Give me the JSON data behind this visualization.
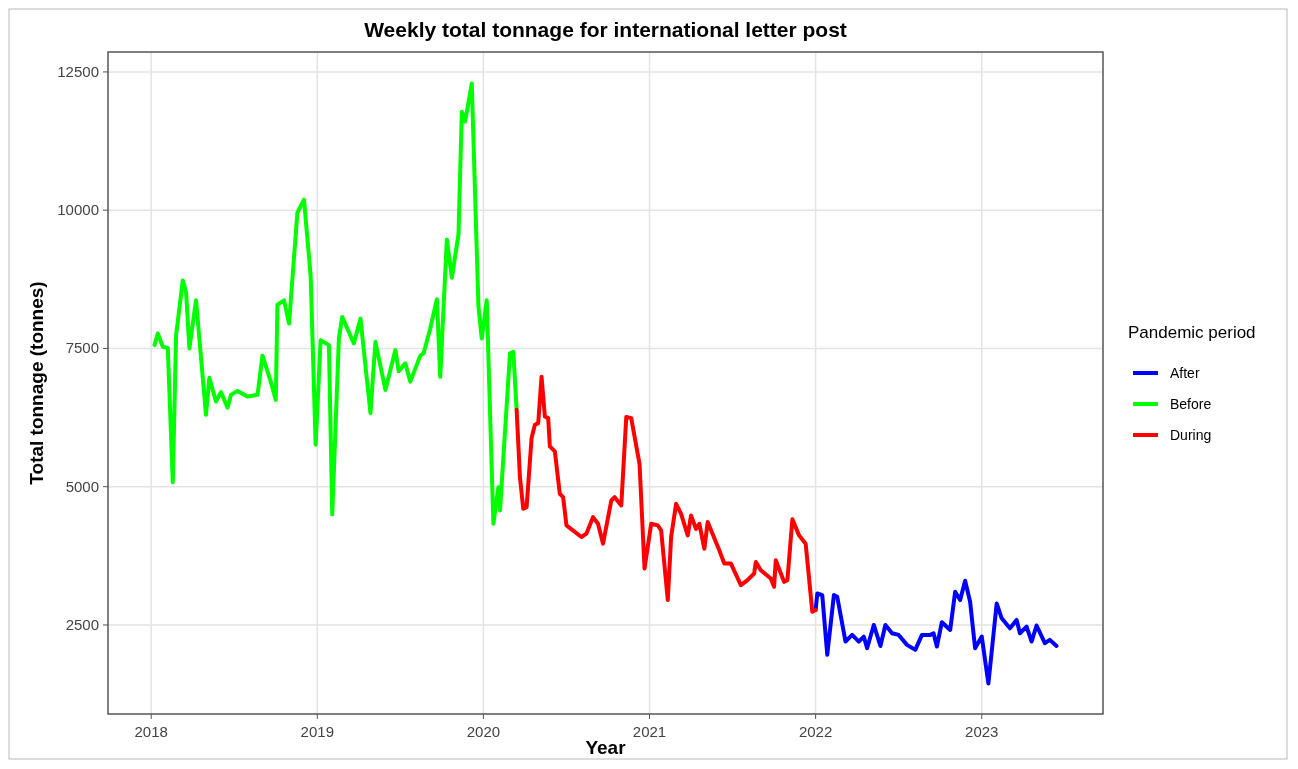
{
  "chart_data": {
    "type": "line",
    "title": "Weekly total tonnage for international letter post",
    "xlabel": "Year",
    "ylabel": "Total tonnage (tonnes)",
    "legend_title": "Pandemic period",
    "xlim": [
      2017.74,
      2023.73
    ],
    "xticks": [
      2018,
      2019,
      2020,
      2021,
      2022,
      2023
    ],
    "ylim": [
      890,
      12860
    ],
    "yticks": [
      2500,
      5000,
      7500,
      10000,
      12500
    ],
    "grid": true,
    "legend": "right",
    "series": [
      {
        "name": "After",
        "color": "#0000ff",
        "x": [
          2022.0,
          2022.01,
          2022.04,
          2022.07,
          2022.11,
          2022.13,
          2022.18,
          2022.22,
          2022.26,
          2022.29,
          2022.31,
          2022.35,
          2022.39,
          2022.42,
          2022.46,
          2022.5,
          2022.55,
          2022.6,
          2022.64,
          2022.69,
          2022.71,
          2022.73,
          2022.76,
          2022.81,
          2022.84,
          2022.87,
          2022.9,
          2022.93,
          2022.96,
          2023.0,
          2023.04,
          2023.09,
          2023.12,
          2023.17,
          2023.21,
          2023.23,
          2023.27,
          2023.3,
          2023.33,
          2023.38,
          2023.41,
          2023.45
        ],
        "values": [
          2770,
          3070,
          3040,
          1960,
          3040,
          3010,
          2200,
          2320,
          2200,
          2290,
          2080,
          2500,
          2120,
          2500,
          2350,
          2320,
          2140,
          2050,
          2320,
          2320,
          2350,
          2110,
          2550,
          2410,
          3100,
          2950,
          3300,
          2920,
          2080,
          2290,
          1440,
          2890,
          2620,
          2440,
          2590,
          2350,
          2470,
          2200,
          2490,
          2170,
          2230,
          2120
        ]
      },
      {
        "name": "Before",
        "color": "#00ff00",
        "x": [
          2018.02,
          2018.04,
          2018.07,
          2018.1,
          2018.13,
          2018.15,
          2018.19,
          2018.21,
          2018.23,
          2018.27,
          2018.33,
          2018.35,
          2018.39,
          2018.42,
          2018.46,
          2018.48,
          2018.52,
          2018.58,
          2018.64,
          2018.67,
          2018.72,
          2018.75,
          2018.76,
          2018.8,
          2018.83,
          2018.88,
          2018.92,
          2018.96,
          2018.99,
          2019.02,
          2019.07,
          2019.09,
          2019.13,
          2019.15,
          2019.22,
          2019.26,
          2019.32,
          2019.35,
          2019.41,
          2019.47,
          2019.49,
          2019.53,
          2019.56,
          2019.62,
          2019.64,
          2019.68,
          2019.72,
          2019.74,
          2019.78,
          2019.81,
          2019.85,
          2019.87,
          2019.89,
          2019.93,
          2019.97,
          2019.99,
          2020.02,
          2020.06,
          2020.09,
          2020.1,
          2020.16,
          2020.18,
          2020.2
        ],
        "values": [
          7560,
          7770,
          7530,
          7510,
          5080,
          7740,
          8730,
          8520,
          7500,
          8370,
          6300,
          6970,
          6540,
          6710,
          6430,
          6660,
          6730,
          6630,
          6660,
          7370,
          6900,
          6570,
          8290,
          8370,
          7950,
          9950,
          10190,
          8810,
          5760,
          7650,
          7560,
          4500,
          7680,
          8070,
          7590,
          8040,
          6330,
          7620,
          6750,
          7470,
          7090,
          7230,
          6900,
          7370,
          7410,
          7860,
          8390,
          6990,
          9470,
          8780,
          9560,
          11780,
          11600,
          12290,
          8270,
          7680,
          8370,
          4330,
          4990,
          4570,
          7410,
          7440,
          6390
        ]
      },
      {
        "name": "During",
        "color": "#ff0000",
        "x": [
          2020.2,
          2020.22,
          2020.24,
          2020.26,
          2020.29,
          2020.31,
          2020.33,
          2020.35,
          2020.37,
          2020.39,
          2020.4,
          2020.43,
          2020.46,
          2020.48,
          2020.5,
          2020.59,
          2020.62,
          2020.66,
          2020.69,
          2020.72,
          2020.77,
          2020.79,
          2020.83,
          2020.86,
          2020.89,
          2020.94,
          2020.97,
          2021.01,
          2021.05,
          2021.07,
          2021.11,
          2021.13,
          2021.16,
          2021.19,
          2021.23,
          2021.25,
          2021.28,
          2021.3,
          2021.33,
          2021.35,
          2021.42,
          2021.45,
          2021.49,
          2021.55,
          2021.59,
          2021.63,
          2021.64,
          2021.67,
          2021.73,
          2021.75,
          2021.76,
          2021.81,
          2021.83,
          2021.86,
          2021.9,
          2021.94,
          2021.98,
          2022.0
        ],
        "values": [
          6390,
          5170,
          4600,
          4630,
          5880,
          6120,
          6150,
          6990,
          6270,
          6240,
          5730,
          5640,
          4870,
          4810,
          4300,
          4090,
          4150,
          4450,
          4330,
          3970,
          4750,
          4810,
          4660,
          6260,
          6240,
          5410,
          3520,
          4330,
          4300,
          4210,
          2950,
          4090,
          4690,
          4510,
          4120,
          4480,
          4235,
          4330,
          3880,
          4360,
          3850,
          3610,
          3610,
          3220,
          3310,
          3430,
          3640,
          3490,
          3340,
          3190,
          3670,
          3280,
          3310,
          4410,
          4120,
          3970,
          2740,
          2770
        ]
      }
    ]
  }
}
